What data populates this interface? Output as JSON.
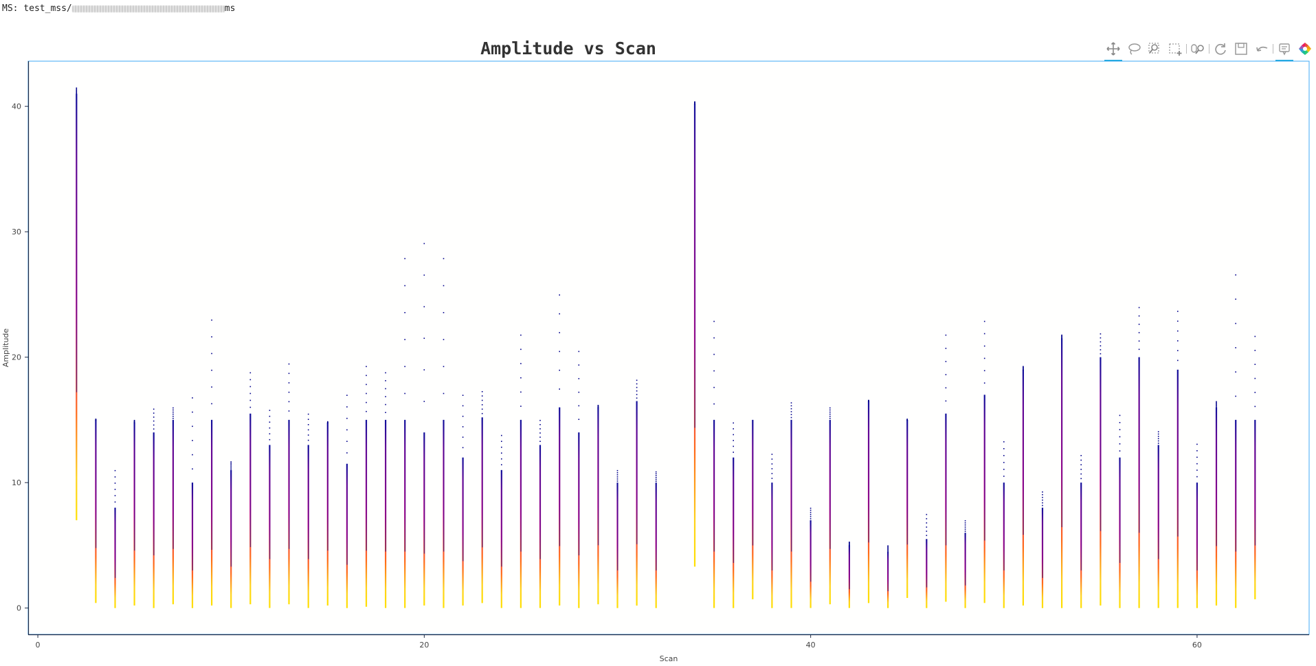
{
  "ms_label": {
    "prefix": "MS: test_mss/",
    "suffix": "ms"
  },
  "toolbar": [
    {
      "name": "pan-tool-icon",
      "active": true
    },
    {
      "name": "lasso-select-icon",
      "active": false
    },
    {
      "name": "box-zoom-icon",
      "active": false
    },
    {
      "name": "box-select-icon",
      "active": false
    },
    {
      "name": "wheel-zoom-icon",
      "active": false
    },
    {
      "name": "reset-icon",
      "active": false
    },
    {
      "name": "save-icon",
      "active": false
    },
    {
      "name": "undo-icon",
      "active": false
    },
    {
      "name": "hover-tooltip-icon",
      "active": true
    },
    {
      "name": "bokeh-logo-icon",
      "active": false
    }
  ],
  "chart_data": {
    "type": "scatter",
    "title": "Amplitude vs Scan",
    "xlabel": "Scan",
    "ylabel": "Amplitude",
    "xlim": [
      -0.5,
      65.8
    ],
    "ylim": [
      -2.1,
      43.6
    ],
    "xticks": [
      0,
      20,
      40,
      60
    ],
    "yticks": [
      0,
      10,
      20,
      30,
      40
    ],
    "grid": false,
    "colors": {
      "low": "#ffe000",
      "mid": "#ff6a1a",
      "hi": "#e0108c",
      "top": "#1a1aa6",
      "point": "#00008b",
      "frame": "#3fa9f5"
    },
    "scans": [
      {
        "x": 2,
        "min": 7,
        "max": 41.0,
        "outlier_max": 41.5
      },
      {
        "x": 3,
        "min": 0.4,
        "max": 15.0,
        "outlier_max": 15.1
      },
      {
        "x": 4,
        "min": 0,
        "max": 8.0,
        "outlier_max": 11.0
      },
      {
        "x": 5,
        "min": 0.2,
        "max": 14.8,
        "outlier_max": 15.0
      },
      {
        "x": 6,
        "min": 0,
        "max": 14.0,
        "outlier_max": 15.9
      },
      {
        "x": 7,
        "min": 0.3,
        "max": 15.0,
        "outlier_max": 16.0
      },
      {
        "x": 8,
        "min": 0,
        "max": 10.0,
        "outlier_max": 16.8
      },
      {
        "x": 9,
        "min": 0.2,
        "max": 15.0,
        "outlier_max": 23.0
      },
      {
        "x": 10,
        "min": 0,
        "max": 11.0,
        "outlier_max": 11.7
      },
      {
        "x": 11,
        "min": 0.3,
        "max": 15.5,
        "outlier_max": 18.8
      },
      {
        "x": 12,
        "min": 0,
        "max": 13.0,
        "outlier_max": 15.8
      },
      {
        "x": 13,
        "min": 0.3,
        "max": 15.0,
        "outlier_max": 19.5
      },
      {
        "x": 14,
        "min": 0,
        "max": 13.0,
        "outlier_max": 15.5
      },
      {
        "x": 15,
        "min": 0.2,
        "max": 14.8,
        "outlier_max": 14.9
      },
      {
        "x": 16,
        "min": 0,
        "max": 11.5,
        "outlier_max": 17.0
      },
      {
        "x": 17,
        "min": 0.1,
        "max": 15.0,
        "outlier_max": 19.3
      },
      {
        "x": 18,
        "min": 0,
        "max": 15.0,
        "outlier_max": 18.8
      },
      {
        "x": 19,
        "min": 0,
        "max": 15.0,
        "outlier_max": 27.9
      },
      {
        "x": 20,
        "min": 0.2,
        "max": 14.0,
        "outlier_max": 29.1
      },
      {
        "x": 21,
        "min": 0,
        "max": 15.0,
        "outlier_max": 27.9
      },
      {
        "x": 22,
        "min": 0.2,
        "max": 12.0,
        "outlier_max": 17.0
      },
      {
        "x": 23,
        "min": 0.4,
        "max": 15.2,
        "outlier_max": 17.3
      },
      {
        "x": 24,
        "min": 0,
        "max": 11.0,
        "outlier_max": 13.8
      },
      {
        "x": 25,
        "min": 0,
        "max": 15.0,
        "outlier_max": 21.8
      },
      {
        "x": 26,
        "min": 0,
        "max": 13.0,
        "outlier_max": 15.0
      },
      {
        "x": 27,
        "min": 0.2,
        "max": 16.0,
        "outlier_max": 25.0
      },
      {
        "x": 28,
        "min": 0,
        "max": 14.0,
        "outlier_max": 20.5
      },
      {
        "x": 29,
        "min": 0.3,
        "max": 16.0,
        "outlier_max": 16.2
      },
      {
        "x": 30,
        "min": 0,
        "max": 10.0,
        "outlier_max": 11.0
      },
      {
        "x": 31,
        "min": 0.2,
        "max": 16.5,
        "outlier_max": 18.2
      },
      {
        "x": 32,
        "min": 0,
        "max": 10.0,
        "outlier_max": 10.9
      },
      {
        "x": 34,
        "min": 3.3,
        "max": 40.2,
        "outlier_max": 40.4
      },
      {
        "x": 35,
        "min": 0,
        "max": 15.0,
        "outlier_max": 22.9
      },
      {
        "x": 36,
        "min": 0,
        "max": 12.0,
        "outlier_max": 14.8
      },
      {
        "x": 37,
        "min": 0.7,
        "max": 15.0,
        "outlier_max": 15.0
      },
      {
        "x": 38,
        "min": 0,
        "max": 10.0,
        "outlier_max": 12.3
      },
      {
        "x": 39,
        "min": 0,
        "max": 15.0,
        "outlier_max": 16.4
      },
      {
        "x": 40,
        "min": 0,
        "max": 7.0,
        "outlier_max": 8.0
      },
      {
        "x": 41,
        "min": 0.3,
        "max": 15.0,
        "outlier_max": 16.0
      },
      {
        "x": 42,
        "min": 0,
        "max": 5.0,
        "outlier_max": 5.3
      },
      {
        "x": 43,
        "min": 0.4,
        "max": 16.5,
        "outlier_max": 16.6
      },
      {
        "x": 44,
        "min": 0,
        "max": 4.5,
        "outlier_max": 5.0
      },
      {
        "x": 45,
        "min": 0.8,
        "max": 15.0,
        "outlier_max": 15.1
      },
      {
        "x": 46,
        "min": 0,
        "max": 5.5,
        "outlier_max": 7.5
      },
      {
        "x": 47,
        "min": 0.5,
        "max": 15.5,
        "outlier_max": 21.8
      },
      {
        "x": 48,
        "min": 0,
        "max": 6.0,
        "outlier_max": 7.0
      },
      {
        "x": 49,
        "min": 0.4,
        "max": 17.0,
        "outlier_max": 22.9
      },
      {
        "x": 50,
        "min": 0,
        "max": 10.0,
        "outlier_max": 13.3
      },
      {
        "x": 51,
        "min": 0.2,
        "max": 19.0,
        "outlier_max": 19.3
      },
      {
        "x": 52,
        "min": 0,
        "max": 8.0,
        "outlier_max": 9.3
      },
      {
        "x": 53,
        "min": 0,
        "max": 21.5,
        "outlier_max": 21.8
      },
      {
        "x": 54,
        "min": 0,
        "max": 10.0,
        "outlier_max": 12.2
      },
      {
        "x": 55,
        "min": 0.2,
        "max": 20.0,
        "outlier_max": 21.9
      },
      {
        "x": 56,
        "min": 0,
        "max": 12.0,
        "outlier_max": 15.4
      },
      {
        "x": 57,
        "min": 0,
        "max": 20.0,
        "outlier_max": 24.0
      },
      {
        "x": 58,
        "min": 0,
        "max": 13.0,
        "outlier_max": 14.1
      },
      {
        "x": 59,
        "min": 0,
        "max": 19.0,
        "outlier_max": 23.7
      },
      {
        "x": 60,
        "min": 0,
        "max": 10.0,
        "outlier_max": 13.1
      },
      {
        "x": 61,
        "min": 0.2,
        "max": 16.0,
        "outlier_max": 16.5
      },
      {
        "x": 62,
        "min": 0,
        "max": 15.0,
        "outlier_max": 26.6
      },
      {
        "x": 63,
        "min": 0.7,
        "max": 15.0,
        "outlier_max": 21.7
      }
    ]
  }
}
